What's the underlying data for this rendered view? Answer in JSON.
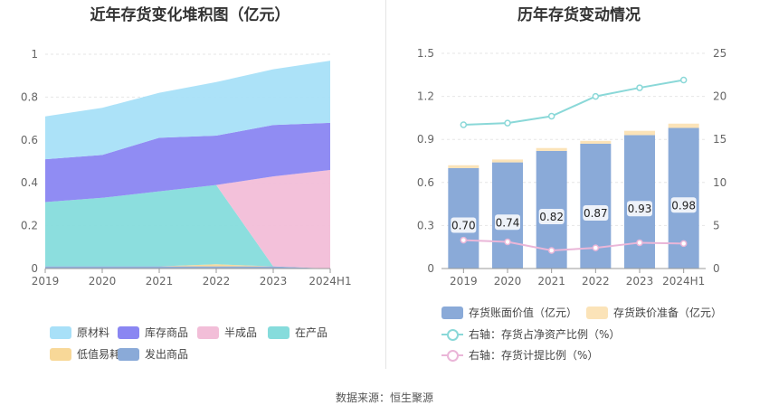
{
  "left_title": "近年存货变化堆积图（亿元）",
  "right_title": "历年存货变动情况",
  "source": "数据来源：恒生聚源",
  "chart_data": [
    {
      "type": "area",
      "stacked": true,
      "title": "近年存货变化堆积图（亿元）",
      "categories": [
        "2019",
        "2020",
        "2021",
        "2022",
        "2023",
        "2024H1"
      ],
      "y_ticks": [
        "0",
        "0.2",
        "0.4",
        "0.6",
        "0.8",
        "1"
      ],
      "ylim": [
        0,
        1
      ],
      "grid": true,
      "legend_placement": "bottom",
      "series": [
        {
          "name": "发出商品",
          "color": "#8aaad8",
          "values": [
            0.01,
            0.01,
            0.01,
            0.01,
            0.01,
            0.0
          ]
        },
        {
          "name": "低值易耗品",
          "color": "#f8d898",
          "values": [
            0.0,
            0.0,
            0.0,
            0.01,
            0.0,
            0.0
          ]
        },
        {
          "name": "在产品",
          "color": "#86dcdc",
          "values": [
            0.3,
            0.32,
            0.35,
            0.37,
            0.0,
            0.0
          ]
        },
        {
          "name": "半成品",
          "color": "#f2bed8",
          "values": [
            0.0,
            0.0,
            0.0,
            0.0,
            0.42,
            0.46
          ]
        },
        {
          "name": "库存商品",
          "color": "#8a86f2",
          "values": [
            0.2,
            0.2,
            0.25,
            0.23,
            0.24,
            0.22
          ]
        },
        {
          "name": "原材料",
          "color": "#a8e0f8",
          "values": [
            0.2,
            0.22,
            0.21,
            0.25,
            0.26,
            0.29
          ]
        }
      ],
      "legend_order": [
        "原材料",
        "库存商品",
        "半成品",
        "在产品",
        "低值易耗品",
        "发出商品"
      ]
    },
    {
      "type": "bar",
      "title": "历年存货变动情况",
      "categories": [
        "2019",
        "2020",
        "2021",
        "2022",
        "2023",
        "2024H1"
      ],
      "y_ticks": [
        "0",
        "0.3",
        "0.6",
        "0.9",
        "1.2",
        "1.5"
      ],
      "ylim": [
        0,
        1.5
      ],
      "y2_ticks": [
        "0",
        "5",
        "10",
        "15",
        "20",
        "25"
      ],
      "y2lim": [
        0,
        25
      ],
      "grid": true,
      "legend_placement": "bottom",
      "series": [
        {
          "name": "存货账面价值（亿元）",
          "kind": "bar",
          "color": "#8aaad8",
          "values": [
            0.7,
            0.74,
            0.82,
            0.87,
            0.93,
            0.98
          ],
          "labels": [
            "0.70",
            "0.74",
            "0.82",
            "0.87",
            "0.93",
            "0.98"
          ]
        },
        {
          "name": "存货跌价准备（亿元）",
          "kind": "bar-stack",
          "color": "#fbe3b8",
          "values": [
            0.02,
            0.02,
            0.02,
            0.02,
            0.03,
            0.03
          ]
        },
        {
          "name": "右轴：存货占净资产比例（%）",
          "kind": "line",
          "axis": "right",
          "color": "#8ad8d8",
          "values": [
            16.7,
            16.9,
            17.7,
            20.0,
            21.0,
            21.9
          ]
        },
        {
          "name": "右轴：存货计提比例（%）",
          "kind": "line",
          "axis": "right",
          "color": "#eab6d8",
          "values": [
            3.3,
            3.1,
            2.1,
            2.4,
            3.0,
            2.9
          ]
        }
      ]
    }
  ]
}
